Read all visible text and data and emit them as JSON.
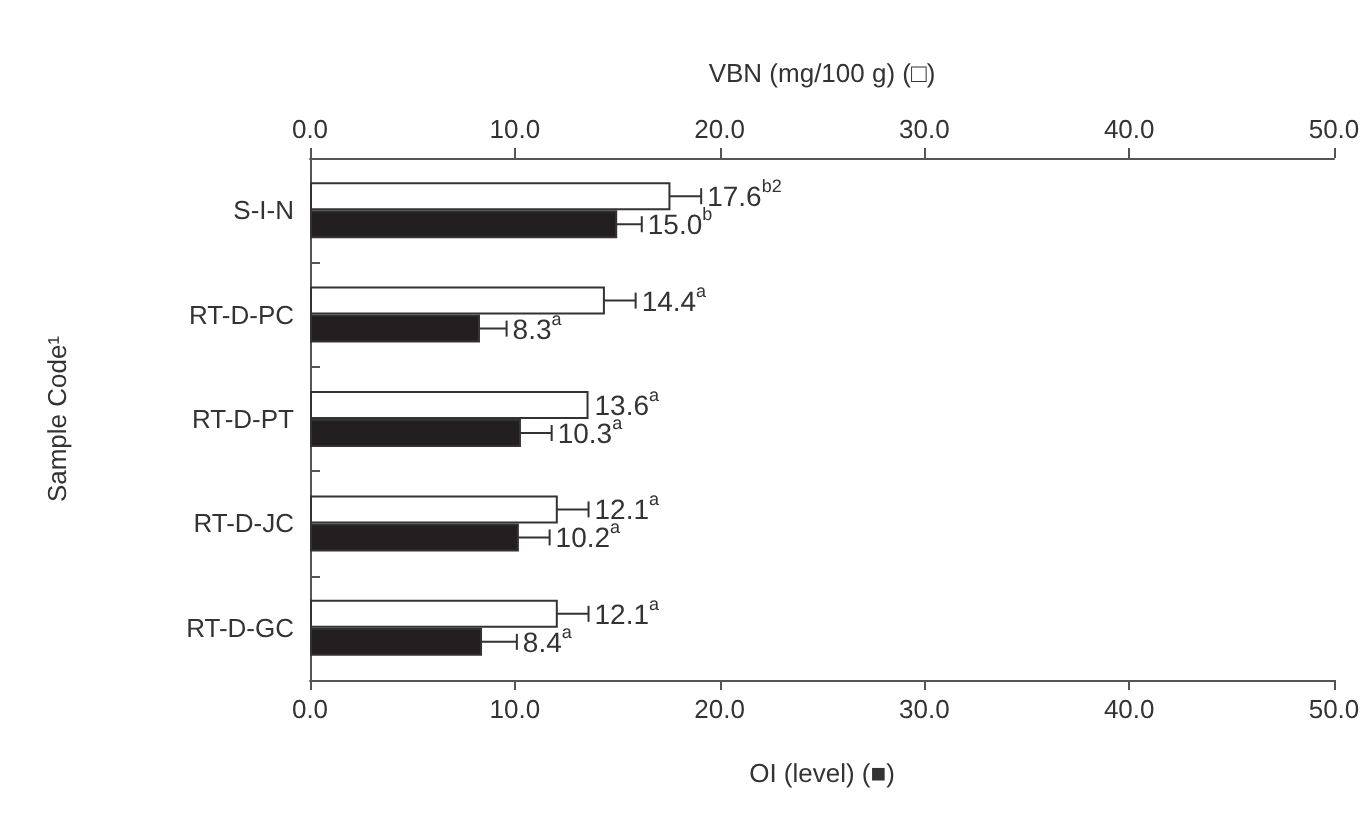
{
  "chart_data": {
    "type": "bar",
    "orientation": "horizontal",
    "ylabel": "Sample Code¹",
    "xlabel": "OI (level) (■)",
    "x2label": "VBN (mg/100 g) (□)",
    "categories": [
      "S-I-N",
      "RT-D-PC",
      "RT-D-PT",
      "RT-D-JC",
      "RT-D-GC"
    ],
    "series": [
      {
        "color": "#ffffff",
        "axis": "x2",
        "values": [
          17.6,
          14.4,
          13.6,
          12.1,
          12.1
        ],
        "errors": [
          1.5,
          1.5,
          null,
          1.5,
          1.5
        ],
        "value_labels": [
          "17.6$^{b2}$",
          "14.4$^{a}$",
          "13.6$^{a}$",
          "12.1$^{a}$",
          "12.1$^{a}$"
        ]
      },
      {
        "color": "#231f20",
        "values": [
          15.0,
          8.3,
          10.3,
          10.2,
          8.4
        ],
        "errors": [
          1.2,
          1.3,
          1.5,
          1.5,
          1.7
        ],
        "value_labels": [
          "15.0$^{b}$",
          "8.3$^{a}$",
          "10.3$^{a}$",
          "10.2$^{a}$",
          "8.4$^{a}$"
        ]
      }
    ],
    "xlim": [
      0,
      50
    ],
    "xticks": [
      {
        "value": 0,
        "label": "0.0"
      },
      {
        "value": 10,
        "label": "10.0"
      },
      {
        "value": 20,
        "label": "20.0"
      },
      {
        "value": 30,
        "label": "30.0"
      },
      {
        "value": 40,
        "label": "40.0"
      },
      {
        "value": 50,
        "label": "50.0"
      }
    ],
    "x2lim": [
      0,
      50
    ],
    "x2ticks": [
      {
        "value": 0,
        "label": "0.0"
      },
      {
        "value": 10,
        "label": "10.0"
      },
      {
        "value": 20,
        "label": "20.0"
      },
      {
        "value": 30,
        "label": "30.0"
      },
      {
        "value": 40,
        "label": "40.0"
      },
      {
        "value": 50,
        "label": "50.0"
      }
    ],
    "grid": false
  }
}
